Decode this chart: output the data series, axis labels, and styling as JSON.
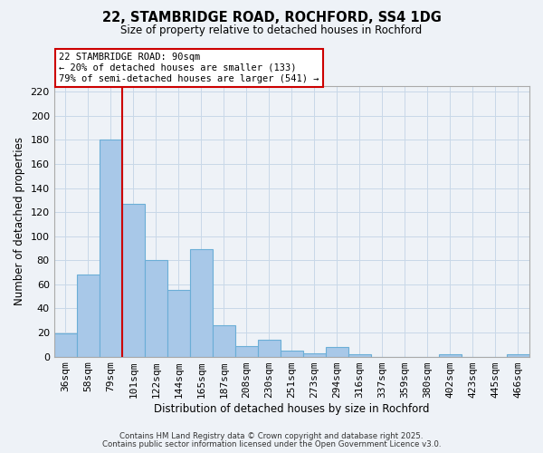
{
  "title": "22, STAMBRIDGE ROAD, ROCHFORD, SS4 1DG",
  "subtitle": "Size of property relative to detached houses in Rochford",
  "xlabel": "Distribution of detached houses by size in Rochford",
  "ylabel": "Number of detached properties",
  "bin_labels": [
    "36sqm",
    "58sqm",
    "79sqm",
    "101sqm",
    "122sqm",
    "144sqm",
    "165sqm",
    "187sqm",
    "208sqm",
    "230sqm",
    "251sqm",
    "273sqm",
    "294sqm",
    "316sqm",
    "337sqm",
    "359sqm",
    "380sqm",
    "402sqm",
    "423sqm",
    "445sqm",
    "466sqm"
  ],
  "bar_heights": [
    19,
    68,
    180,
    127,
    80,
    55,
    89,
    26,
    9,
    14,
    5,
    3,
    8,
    2,
    0,
    0,
    0,
    2,
    0,
    0,
    2
  ],
  "bar_color": "#a8c8e8",
  "bar_edge_color": "#6baed6",
  "grid_color": "#c8d8e8",
  "background_color": "#eef2f7",
  "vline_x_index": 3.0,
  "vline_color": "#cc0000",
  "annotation_line1": "22 STAMBRIDGE ROAD: 90sqm",
  "annotation_line2": "← 20% of detached houses are smaller (133)",
  "annotation_line3": "79% of semi-detached houses are larger (541) →",
  "annotation_box_color": "#cc0000",
  "ylim": [
    0,
    225
  ],
  "yticks": [
    0,
    20,
    40,
    60,
    80,
    100,
    120,
    140,
    160,
    180,
    200,
    220
  ],
  "footer1": "Contains HM Land Registry data © Crown copyright and database right 2025.",
  "footer2": "Contains public sector information licensed under the Open Government Licence v3.0."
}
